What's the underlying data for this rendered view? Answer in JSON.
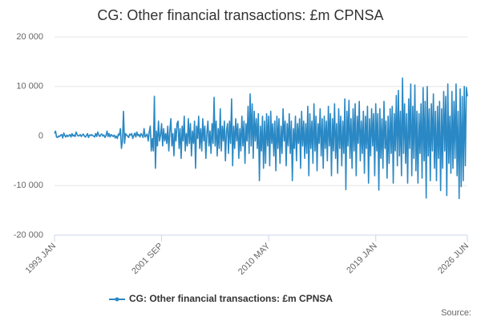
{
  "chart_data": {
    "type": "line",
    "title": "CG: Other financial transactions: £m CPNSA",
    "source": "Source:",
    "categories": [
      "1993 JAN",
      null,
      null,
      null,
      null,
      null,
      null,
      null,
      null,
      null,
      null,
      null,
      null,
      null,
      null,
      null,
      null,
      null,
      null,
      null,
      null,
      null,
      null,
      null,
      null,
      null,
      null,
      null,
      null,
      null,
      null,
      null,
      null,
      null,
      null,
      null,
      null,
      null,
      null,
      null,
      null,
      null,
      null,
      null,
      null,
      null,
      null,
      null,
      null,
      null,
      null,
      null,
      null,
      null,
      null,
      null,
      null,
      null,
      null,
      null,
      null,
      null,
      null,
      null,
      null,
      null,
      null,
      null,
      null,
      null,
      null,
      null,
      null,
      null,
      null,
      null,
      null,
      null,
      null,
      null,
      null,
      null,
      null,
      null,
      null,
      null,
      null,
      null,
      null,
      null,
      null,
      null,
      null,
      null,
      null,
      null,
      null,
      null,
      null,
      null,
      null,
      null,
      null,
      null,
      "2001 SEP",
      null,
      null,
      null,
      null,
      null,
      null,
      null,
      null,
      null,
      null,
      null,
      null,
      null,
      null,
      null,
      null,
      null,
      null,
      null,
      null,
      null,
      null,
      null,
      null,
      null,
      null,
      null,
      null,
      null,
      null,
      null,
      null,
      null,
      null,
      null,
      null,
      null,
      null,
      null,
      null,
      null,
      null,
      null,
      null,
      null,
      null,
      null,
      null,
      null,
      null,
      null,
      null,
      null,
      null,
      null,
      null,
      null,
      null,
      null,
      null,
      null,
      null,
      null,
      null,
      null,
      null,
      null,
      null,
      null,
      null,
      null,
      null,
      null,
      null,
      null,
      null,
      null,
      null,
      null,
      null,
      null,
      null,
      null,
      null,
      null,
      null,
      null,
      null,
      null,
      null,
      null,
      null,
      null,
      null,
      null,
      null,
      null,
      null,
      null,
      null,
      null,
      null,
      null,
      "2010 MAY",
      null,
      null,
      null,
      null,
      null,
      null,
      null,
      null,
      null,
      null,
      null,
      null,
      null,
      null,
      null,
      null,
      null,
      null,
      null,
      null,
      null,
      null,
      null,
      null,
      null,
      null,
      null,
      null,
      null,
      null,
      null,
      null,
      null,
      null,
      null,
      null,
      null,
      null,
      null,
      null,
      null,
      null,
      null,
      null,
      null,
      null,
      null,
      null,
      null,
      null,
      null,
      null,
      null,
      null,
      null,
      null,
      null,
      null,
      null,
      null,
      null,
      null,
      null,
      null,
      null,
      null,
      null,
      null,
      null,
      null,
      null,
      null,
      null,
      null,
      null,
      null,
      null,
      null,
      null,
      null,
      null,
      null,
      null,
      null,
      null,
      null,
      null,
      null,
      null,
      null,
      null,
      null,
      null,
      null,
      null,
      null,
      null,
      null,
      null,
      null,
      null,
      null,
      null,
      "2019 JAN",
      null,
      null,
      null,
      null,
      null,
      null,
      null,
      null,
      null,
      null,
      null,
      null,
      null,
      null,
      null,
      null,
      null,
      null,
      null,
      null,
      null,
      null,
      null,
      null,
      null,
      null,
      null,
      null,
      null,
      null,
      null,
      null,
      null,
      null,
      null,
      null,
      null,
      null,
      null,
      null,
      null,
      null,
      null,
      null,
      null,
      null,
      null,
      null,
      null,
      null,
      null,
      null,
      null,
      null,
      null,
      null,
      null,
      null,
      null,
      null,
      null,
      null,
      null,
      null,
      null,
      null,
      null,
      null,
      null,
      null,
      null,
      null,
      null,
      null,
      null,
      null,
      null,
      null,
      null,
      null,
      null,
      null,
      null,
      null,
      null,
      null,
      null,
      null,
      "2026 JUN"
    ],
    "series": [
      {
        "name": "CG: Other financial transactions: £m CPNSA",
        "color": "#2a88c4",
        "values": [
          500,
          1000,
          -200,
          -300,
          0,
          -100,
          200,
          300,
          -400,
          600,
          100,
          -200,
          200,
          -100,
          100,
          300,
          -200,
          500,
          0,
          200,
          -100,
          800,
          300,
          0,
          100,
          300,
          -100,
          200,
          400,
          0,
          -200,
          100,
          500,
          -300,
          200,
          100,
          300,
          100,
          0,
          -200,
          500,
          -100,
          800,
          200,
          -100,
          300,
          400,
          0,
          200,
          -300,
          100,
          1000,
          -100,
          500,
          -200,
          300,
          100,
          -100,
          200,
          -400,
          0,
          -500,
          400,
          200,
          1500,
          -2500,
          -1000,
          5000,
          -1500,
          500,
          200,
          0,
          -300,
          400,
          200,
          500,
          -500,
          100,
          600,
          -200,
          800,
          100,
          300,
          -200,
          500,
          200,
          -300,
          1500,
          -200,
          100,
          400,
          -1000,
          800,
          2000,
          -3000,
          -500,
          -3000,
          8000,
          -6500,
          1000,
          -2000,
          3000,
          -1000,
          200,
          2500,
          -2000,
          1500,
          -1000,
          500,
          -1500,
          2000,
          -3000,
          1000,
          3500,
          -2000,
          500,
          -4000,
          1500,
          -1000,
          2500,
          3000,
          -2500,
          1500,
          -4500,
          2000,
          -1000,
          4000,
          -3000,
          500,
          -2000,
          3500,
          -1500,
          2500,
          -4000,
          1000,
          -1500,
          3000,
          -6500,
          2000,
          -500,
          4000,
          -2500,
          1500,
          -3000,
          3500,
          -1000,
          2000,
          -4500,
          500,
          3000,
          -2000,
          1000,
          -3500,
          2500,
          -1500,
          7800,
          -2000,
          3000,
          -4000,
          1500,
          -2500,
          5500,
          -3000,
          2000,
          -1000,
          3000,
          -5000,
          1000,
          2500,
          -3500,
          3000,
          -1500,
          7500,
          -6000,
          2000,
          -2500,
          3500,
          -1000,
          2500,
          -4500,
          1500,
          -3000,
          4000,
          -2000,
          3000,
          -5500,
          2500,
          -1000,
          6000,
          -3500,
          8500,
          -2000,
          6500,
          -4500,
          5000,
          -1000,
          3500,
          -2500,
          4500,
          -9000,
          2000,
          -3000,
          4000,
          -6500,
          3000,
          -5500,
          4500,
          -2000,
          4000,
          -6000,
          5000,
          -1500,
          2500,
          -4000,
          3000,
          -7000,
          4000,
          -2500,
          3500,
          -5500,
          2000,
          -3500,
          5500,
          -1000,
          3000,
          -6000,
          2500,
          -2000,
          4500,
          -3500,
          3000,
          -9000,
          1500,
          -2500,
          4000,
          -5000,
          2500,
          -1500,
          3500,
          -6500,
          5000,
          -2000,
          3000,
          -4500,
          2500,
          -3500,
          6000,
          -8000,
          4500,
          -2500,
          3000,
          -5500,
          6500,
          -3000,
          4000,
          -7000,
          2500,
          -1500,
          5500,
          -4000,
          3500,
          -6500,
          4000,
          -2500,
          3000,
          -5000,
          6000,
          -2000,
          4500,
          -8000,
          3500,
          -3000,
          6500,
          -4500,
          2500,
          -7500,
          5500,
          -2500,
          4000,
          -6000,
          3000,
          -3500,
          7500,
          -10800,
          5000,
          -2000,
          7200,
          -4500,
          3500,
          -6500,
          5500,
          -3000,
          6500,
          -8000,
          4000,
          -1500,
          7000,
          -5000,
          3000,
          -3500,
          5000,
          -7500,
          4000,
          -2500,
          6000,
          -9500,
          3500,
          -4000,
          5500,
          -2000,
          4500,
          -8000,
          6500,
          -3000,
          4500,
          -10900,
          5500,
          -4500,
          3500,
          -6500,
          7000,
          -2500,
          3000,
          -8500,
          4000,
          -5500,
          5500,
          -3500,
          6000,
          -9500,
          4500,
          -3000,
          8200,
          -6000,
          9200,
          -4000,
          5000,
          -8000,
          11700,
          -3500,
          6500,
          -5500,
          4500,
          -9500,
          7500,
          -2500,
          10500,
          -8000,
          6000,
          -4500,
          10300,
          -7000,
          5000,
          -9500,
          4500,
          -3500,
          6500,
          -8500,
          9800,
          -5000,
          7000,
          -12500,
          10000,
          -4000,
          5500,
          -9000,
          6500,
          -3000,
          8500,
          -6500,
          5000,
          -9000,
          6000,
          -4500,
          7000,
          -11000,
          5500,
          -6500,
          9000,
          -3000,
          8000,
          -12000,
          10500,
          -5500,
          4000,
          -7500,
          9000,
          -6500,
          7000,
          -4500,
          10500,
          -8000,
          5000,
          -12600,
          9500,
          -10200,
          8000,
          -9000,
          10000,
          -6000,
          9800,
          8000
        ]
      }
    ],
    "ylim": [
      -20000,
      20000
    ],
    "yticks": [
      {
        "value": -20000,
        "label": "-20 000"
      },
      {
        "value": -10000,
        "label": "-10 000"
      },
      0,
      {
        "value": 10000,
        "label": "10 000"
      },
      {
        "value": 20000,
        "label": "20 000"
      }
    ],
    "grid": true
  }
}
